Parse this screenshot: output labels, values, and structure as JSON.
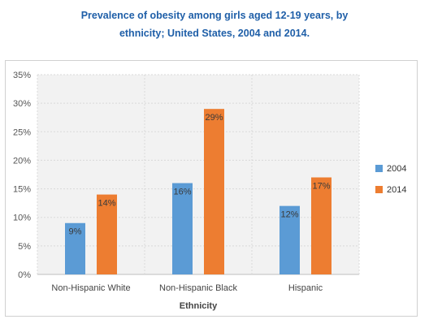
{
  "title_line1": "Prevalence of obesity among girls aged 12-19 years, by",
  "title_line2": "ethnicity; United States, 2004 and 2014.",
  "chart_data": {
    "type": "bar",
    "title": "Prevalence of obesity among girls aged 12-19 years, by ethnicity; United States, 2004 and 2014.",
    "xlabel": "Ethnicity",
    "ylabel": "",
    "categories": [
      "Non-Hispanic White",
      "Non-Hispanic Black",
      "Hispanic"
    ],
    "series": [
      {
        "name": "2004",
        "values": [
          9,
          16,
          12
        ],
        "labels": [
          "9%",
          "16%",
          "12%"
        ],
        "color": "#5b9bd5"
      },
      {
        "name": "2014",
        "values": [
          14,
          29,
          17
        ],
        "labels": [
          "14%",
          "29%",
          "17%"
        ],
        "color": "#ed7d31"
      }
    ],
    "ylim": [
      0,
      35
    ],
    "yticks": [
      "0%",
      "5%",
      "10%",
      "15%",
      "20%",
      "25%",
      "30%",
      "35%"
    ],
    "ytick_values": [
      0,
      5,
      10,
      15,
      20,
      25,
      30,
      35
    ],
    "grid": true,
    "legend_position": "right"
  }
}
